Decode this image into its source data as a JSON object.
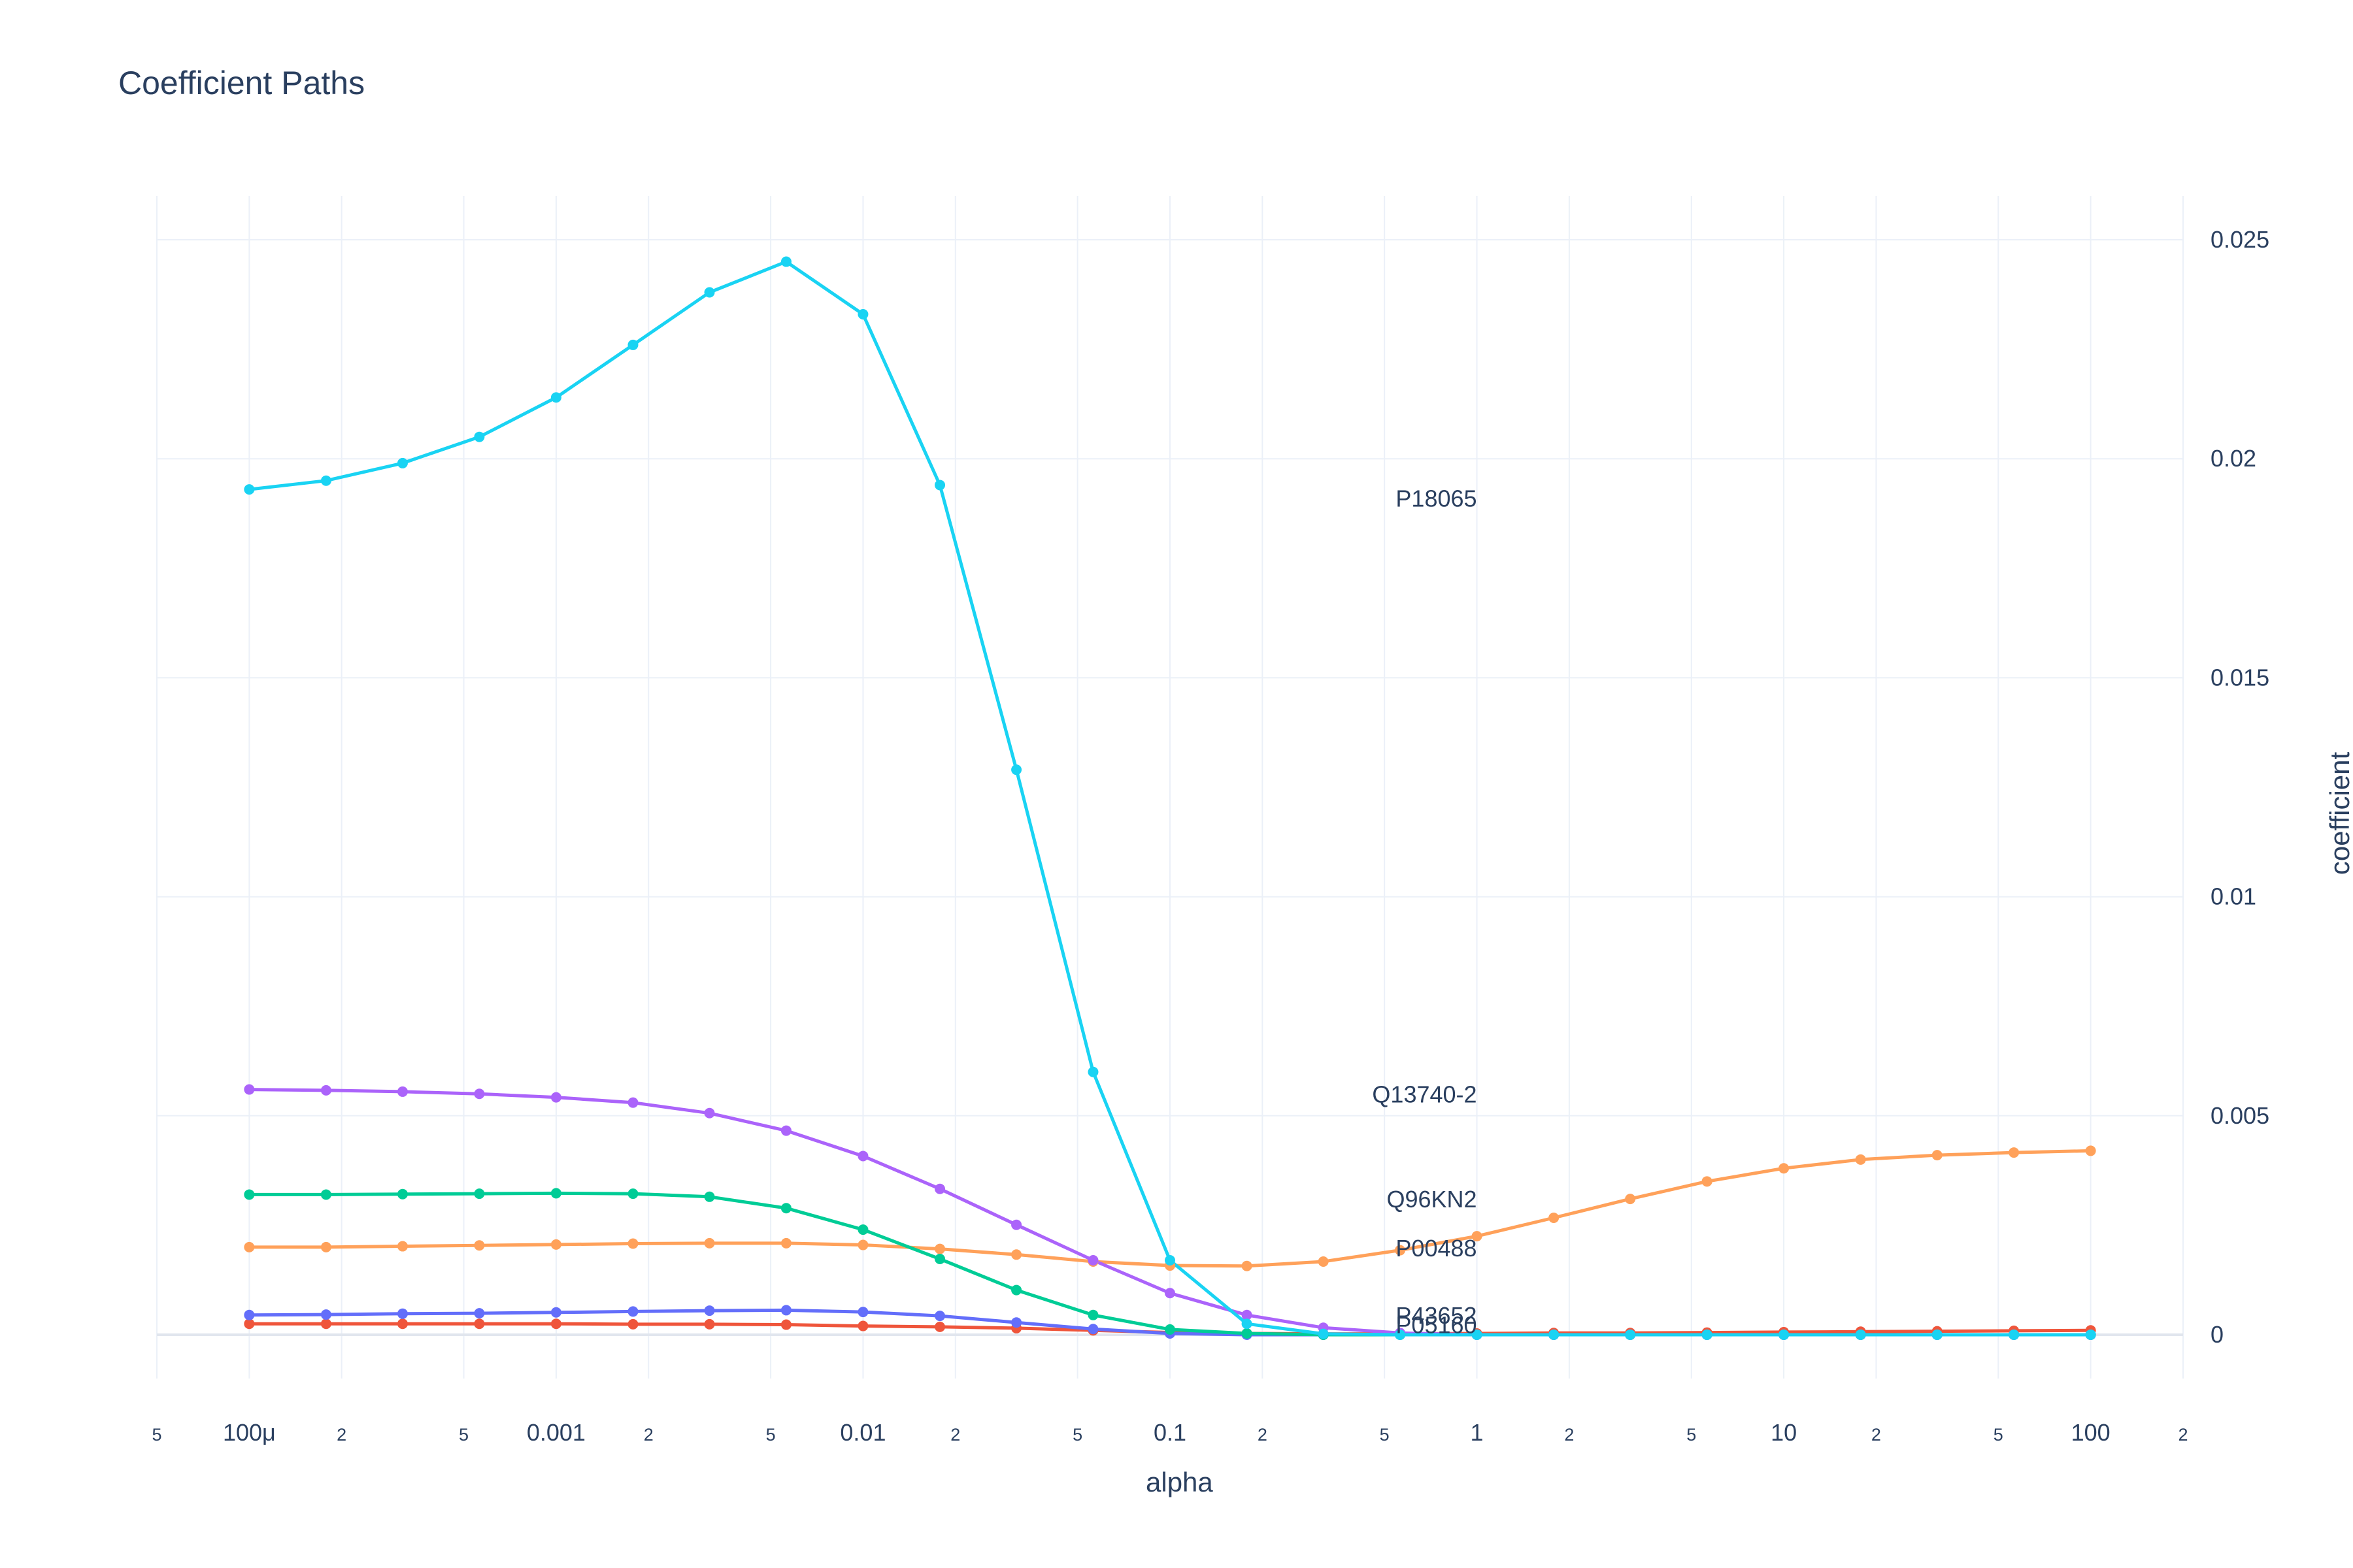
{
  "chart_data": {
    "type": "line",
    "title": "Coefficient Paths",
    "xlabel": "alpha",
    "ylabel": "coefficient",
    "xscale": "log",
    "xlim": [
      5e-05,
      200
    ],
    "ylim": [
      -0.001,
      0.026
    ],
    "y_axis_side": "right",
    "grid": true,
    "x": [
      0.0001,
      0.000178,
      0.000316,
      0.000562,
      0.001,
      0.00178,
      0.00316,
      0.00562,
      0.01,
      0.0178,
      0.0316,
      0.0562,
      0.1,
      0.178,
      0.316,
      0.562,
      1,
      1.78,
      3.16,
      5.62,
      10,
      17.8,
      31.6,
      56.2,
      100
    ],
    "x_ticks": [
      {
        "value": 5e-05,
        "label": "5",
        "minor": true
      },
      {
        "value": 0.0001,
        "label": "100μ",
        "minor": false
      },
      {
        "value": 0.0002,
        "label": "2",
        "minor": true
      },
      {
        "value": 0.0005,
        "label": "5",
        "minor": true
      },
      {
        "value": 0.001,
        "label": "0.001",
        "minor": false
      },
      {
        "value": 0.002,
        "label": "2",
        "minor": true
      },
      {
        "value": 0.005,
        "label": "5",
        "minor": true
      },
      {
        "value": 0.01,
        "label": "0.01",
        "minor": false
      },
      {
        "value": 0.02,
        "label": "2",
        "minor": true
      },
      {
        "value": 0.05,
        "label": "5",
        "minor": true
      },
      {
        "value": 0.1,
        "label": "0.1",
        "minor": false
      },
      {
        "value": 0.2,
        "label": "2",
        "minor": true
      },
      {
        "value": 0.5,
        "label": "5",
        "minor": true
      },
      {
        "value": 1,
        "label": "1",
        "minor": false
      },
      {
        "value": 2,
        "label": "2",
        "minor": true
      },
      {
        "value": 5,
        "label": "5",
        "minor": true
      },
      {
        "value": 10,
        "label": "10",
        "minor": false
      },
      {
        "value": 20,
        "label": "2",
        "minor": true
      },
      {
        "value": 50,
        "label": "5",
        "minor": true
      },
      {
        "value": 100,
        "label": "100",
        "minor": false
      },
      {
        "value": 200,
        "label": "2",
        "minor": true
      }
    ],
    "y_ticks": [
      {
        "value": 0,
        "label": "0"
      },
      {
        "value": 0.005,
        "label": "0.005"
      },
      {
        "value": 0.01,
        "label": "0.01"
      },
      {
        "value": 0.015,
        "label": "0.015"
      },
      {
        "value": 0.02,
        "label": "0.02"
      },
      {
        "value": 0.025,
        "label": "0.025"
      }
    ],
    "series": [
      {
        "name": "P05160",
        "color": "#EF553B",
        "values": [
          0.00025,
          0.00025,
          0.00025,
          0.00025,
          0.00025,
          0.00024,
          0.00024,
          0.00023,
          0.0002,
          0.00018,
          0.00015,
          0.0001,
          5e-05,
          3e-05,
          2e-05,
          2e-05,
          3e-05,
          4e-05,
          4e-05,
          5e-05,
          6e-05,
          7e-05,
          8e-05,
          9e-05,
          0.0001
        ]
      },
      {
        "name": "P43652",
        "color": "#636EFA",
        "values": [
          0.00045,
          0.00046,
          0.00048,
          0.00049,
          0.00051,
          0.00053,
          0.00055,
          0.00056,
          0.00052,
          0.00043,
          0.00028,
          0.00013,
          3e-05,
          0.0,
          0.0,
          0.0,
          0.0,
          0.0,
          0.0,
          0.0,
          0.0,
          0.0,
          0.0,
          0.0,
          0.0
        ]
      },
      {
        "name": "P00488",
        "color": "#FFA15A",
        "values": [
          0.002,
          0.002,
          0.00202,
          0.00204,
          0.00206,
          0.00208,
          0.00209,
          0.00209,
          0.00205,
          0.00196,
          0.00183,
          0.00167,
          0.00158,
          0.00157,
          0.00167,
          0.00193,
          0.00225,
          0.00267,
          0.0031,
          0.0035,
          0.0038,
          0.004,
          0.0041,
          0.00416,
          0.0042
        ]
      },
      {
        "name": "Q96KN2",
        "color": "#00CC96",
        "values": [
          0.0032,
          0.0032,
          0.00321,
          0.00322,
          0.00323,
          0.00322,
          0.00315,
          0.00289,
          0.0024,
          0.00173,
          0.00102,
          0.00045,
          0.00012,
          3e-05,
          0.0,
          0.0,
          0.0,
          0.0,
          0.0,
          0.0,
          0.0,
          0.0,
          0.0,
          0.0,
          0.0
        ]
      },
      {
        "name": "Q13740-2",
        "color": "#AB63FA",
        "values": [
          0.0056,
          0.00558,
          0.00555,
          0.0055,
          0.00542,
          0.0053,
          0.00506,
          0.00466,
          0.00408,
          0.00333,
          0.00251,
          0.0017,
          0.00095,
          0.00045,
          0.00016,
          4e-05,
          0.0,
          0.0,
          0.0,
          0.0,
          0.0,
          0.0,
          0.0,
          0.0,
          0.0
        ]
      },
      {
        "name": "P18065",
        "color": "#19D3F3",
        "values": [
          0.0193,
          0.0195,
          0.0199,
          0.0205,
          0.0214,
          0.0226,
          0.0238,
          0.0245,
          0.0233,
          0.0194,
          0.0129,
          0.006,
          0.0017,
          0.00025,
          2e-05,
          0.0,
          0.0,
          0.0,
          0.0,
          0.0,
          0.0,
          0.0,
          0.0,
          0.0,
          0.0
        ]
      }
    ],
    "annotations": [
      {
        "text": "P18065",
        "x": 1,
        "y": 0.0191
      },
      {
        "text": "Q13740-2",
        "x": 1,
        "y": 0.0055
      },
      {
        "text": "Q96KN2",
        "x": 1,
        "y": 0.0031
      },
      {
        "text": "P00488",
        "x": 1,
        "y": 0.00198
      },
      {
        "text": "P43652",
        "x": 1,
        "y": 0.00045
      },
      {
        "text": "P05160",
        "x": 1,
        "y": 0.00023
      }
    ]
  }
}
